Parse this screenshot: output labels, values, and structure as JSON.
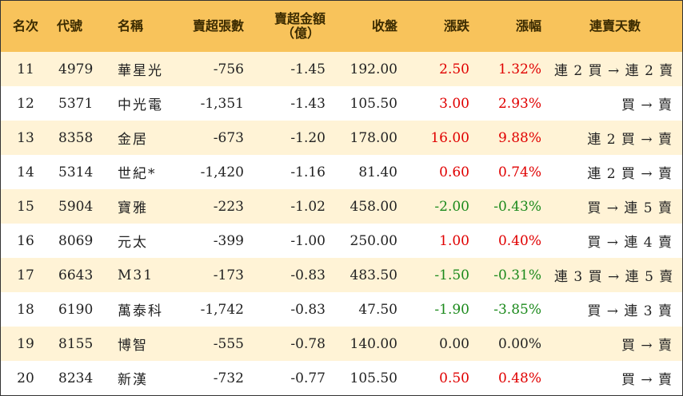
{
  "colors": {
    "header_bg": "#f8c35b",
    "odd_row_bg": "#fff3d6",
    "up": "#e00000",
    "down": "#1c8a1c"
  },
  "headers": {
    "rank": "名次",
    "code": "代號",
    "name": "名稱",
    "net_lots": "賣超張數",
    "net_amount_line1": "賣超金額",
    "net_amount_line2": "（億）",
    "close": "收盤",
    "change": "漲跌",
    "change_pct": "漲幅",
    "days": "連賣天數"
  },
  "rows": [
    {
      "rank": "11",
      "code": "4979",
      "name": "華星光",
      "lots": "-756",
      "amount": "-1.45",
      "close": "192.00",
      "change": "2.50",
      "pct": "1.32%",
      "dir": "pos",
      "days": "連 2 買 → 連 2 賣"
    },
    {
      "rank": "12",
      "code": "5371",
      "name": "中光電",
      "lots": "-1,351",
      "amount": "-1.43",
      "close": "105.50",
      "change": "3.00",
      "pct": "2.93%",
      "dir": "pos",
      "days": "買 → 賣"
    },
    {
      "rank": "13",
      "code": "8358",
      "name": "金居",
      "lots": "-673",
      "amount": "-1.20",
      "close": "178.00",
      "change": "16.00",
      "pct": "9.88%",
      "dir": "pos",
      "days": "連 2 買 → 賣"
    },
    {
      "rank": "14",
      "code": "5314",
      "name": "世紀*",
      "lots": "-1,420",
      "amount": "-1.16",
      "close": "81.40",
      "change": "0.60",
      "pct": "0.74%",
      "dir": "pos",
      "days": "連 2 買 → 賣"
    },
    {
      "rank": "15",
      "code": "5904",
      "name": "寶雅",
      "lots": "-223",
      "amount": "-1.02",
      "close": "458.00",
      "change": "-2.00",
      "pct": "-0.43%",
      "dir": "neg",
      "days": "買 → 連 5 賣"
    },
    {
      "rank": "16",
      "code": "8069",
      "name": "元太",
      "lots": "-399",
      "amount": "-1.00",
      "close": "250.00",
      "change": "1.00",
      "pct": "0.40%",
      "dir": "pos",
      "days": "買 → 連 4 賣"
    },
    {
      "rank": "17",
      "code": "6643",
      "name": "M31",
      "lots": "-173",
      "amount": "-0.83",
      "close": "483.50",
      "change": "-1.50",
      "pct": "-0.31%",
      "dir": "neg",
      "days": "連 3 買 → 連 5 賣"
    },
    {
      "rank": "18",
      "code": "6190",
      "name": "萬泰科",
      "lots": "-1,742",
      "amount": "-0.83",
      "close": "47.50",
      "change": "-1.90",
      "pct": "-3.85%",
      "dir": "neg",
      "days": "買 → 連 3 賣"
    },
    {
      "rank": "19",
      "code": "8155",
      "name": "博智",
      "lots": "-555",
      "amount": "-0.78",
      "close": "140.00",
      "change": "0.00",
      "pct": "0.00%",
      "dir": "zero",
      "days": "買 → 賣"
    },
    {
      "rank": "20",
      "code": "8234",
      "name": "新漢",
      "lots": "-732",
      "amount": "-0.77",
      "close": "105.50",
      "change": "0.50",
      "pct": "0.48%",
      "dir": "pos",
      "days": "買 → 賣"
    }
  ]
}
